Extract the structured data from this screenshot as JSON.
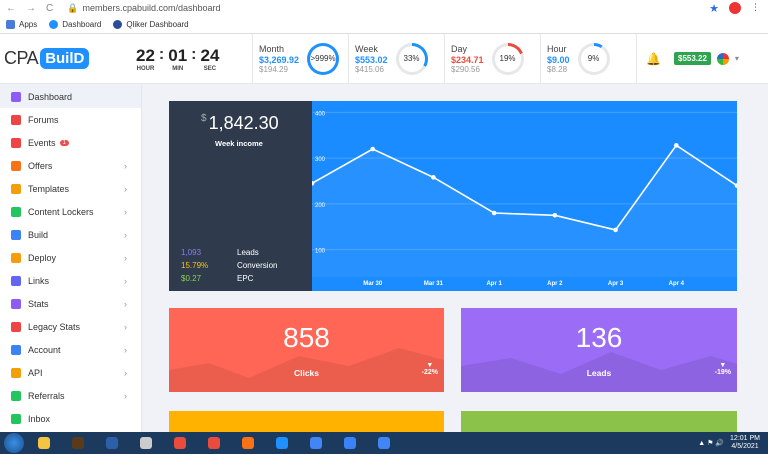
{
  "browser": {
    "url": "members.cpabuild.com/dashboard",
    "nav": [
      "←",
      "→",
      "C"
    ]
  },
  "bookmarks": [
    {
      "label": "Apps",
      "color": "#4a7bd8"
    },
    {
      "label": "Dashboard",
      "color": "#1e90ff"
    },
    {
      "label": "Qliker Dashboard",
      "color": "#2a4d9b"
    }
  ],
  "logo": {
    "cpa": "CPA",
    "build": "BuilD"
  },
  "timer": {
    "hours": "22",
    "hours_label": "HOUR",
    "minutes": "01",
    "minutes_label": "MIN",
    "seconds": "24",
    "seconds_label": "SEC"
  },
  "stats": [
    {
      "name": "Month",
      "main": "$3,269.92",
      "sub": "$194.29",
      "pct": ">999%",
      "color": "#1e90ff",
      "fill": 1.0
    },
    {
      "name": "Week",
      "main": "$553.02",
      "sub": "$415.06",
      "pct": "33%",
      "color": "#1e90ff",
      "fill": 0.33
    },
    {
      "name": "Day",
      "main": "$234.71",
      "sub": "$290.56",
      "pct": "19%",
      "color": "#e94c3d",
      "fill": 0.19
    },
    {
      "name": "Hour",
      "main": "$9.00",
      "sub": "$8.28",
      "pct": "9%",
      "color": "#1e90ff",
      "fill": 0.09
    }
  ],
  "header": {
    "balance": "$553.22"
  },
  "sidebar": {
    "items": [
      {
        "label": "Dashboard",
        "icon": "dashboard-icon",
        "color": "#8b5cf6",
        "chevron": false
      },
      {
        "label": "Forums",
        "icon": "chat-icon",
        "color": "#ef4444",
        "chevron": false
      },
      {
        "label": "Events",
        "icon": "megaphone-icon",
        "color": "#ef4444",
        "chevron": false,
        "badge": "1"
      },
      {
        "label": "Offers",
        "icon": "fire-icon",
        "color": "#f97316",
        "chevron": true
      },
      {
        "label": "Templates",
        "icon": "templates-icon",
        "color": "#f59e0b",
        "chevron": true
      },
      {
        "label": "Content Lockers",
        "icon": "locker-icon",
        "color": "#22c55e",
        "chevron": true
      },
      {
        "label": "Build",
        "icon": "hammer-icon",
        "color": "#3b82f6",
        "chevron": true
      },
      {
        "label": "Deploy",
        "icon": "briefcase-icon",
        "color": "#f59e0b",
        "chevron": true
      },
      {
        "label": "Links",
        "icon": "link-icon",
        "color": "#6366f1",
        "chevron": true
      },
      {
        "label": "Stats",
        "icon": "stats-icon",
        "color": "#8b5cf6",
        "chevron": true
      },
      {
        "label": "Legacy Stats",
        "icon": "database-icon",
        "color": "#ef4444",
        "chevron": true
      },
      {
        "label": "Account",
        "icon": "user-icon",
        "color": "#3b82f6",
        "chevron": true
      },
      {
        "label": "API",
        "icon": "key-icon",
        "color": "#f59e0b",
        "chevron": true
      },
      {
        "label": "Referrals",
        "icon": "referral-icon",
        "color": "#22c55e",
        "chevron": true
      },
      {
        "label": "Inbox",
        "icon": "inbox-icon",
        "color": "#22c55e",
        "chevron": false
      }
    ]
  },
  "income": {
    "currency": "$",
    "amount": "1,842.30",
    "label": "Week income",
    "rows": [
      {
        "value": "1,093",
        "label": "Leads",
        "color": "#8b7cf6"
      },
      {
        "value": "15.79%",
        "label": "Conversion",
        "color": "#f5c518"
      },
      {
        "value": "$0.27",
        "label": "EPC",
        "color": "#8bd14a"
      }
    ]
  },
  "chart_data": {
    "type": "line",
    "x": [
      "",
      "Mar 30",
      "Mar 31",
      "Apr 1",
      "Apr 2",
      "Apr 3",
      "Apr 4",
      ""
    ],
    "values": [
      245,
      320,
      258,
      180,
      175,
      143,
      328,
      240
    ],
    "yticks": [
      "400",
      "300",
      "200",
      "100"
    ],
    "ylim": [
      40,
      425
    ]
  },
  "metrics": [
    {
      "value": "858",
      "label": "Clicks",
      "pct": "-22%"
    },
    {
      "value": "136",
      "label": "Leads",
      "pct": "-19%"
    }
  ],
  "taskbar": {
    "apps": [
      "#f4c542",
      "#5b3a1a",
      "#2d5fa8",
      "#cccccc",
      "#e94c3d",
      "#e94c3d",
      "#f97316",
      "#1e90ff",
      "#4285f4",
      "#3b82f6",
      "#4285f4"
    ],
    "time": "12:01 PM",
    "date": "4/5/2021"
  }
}
